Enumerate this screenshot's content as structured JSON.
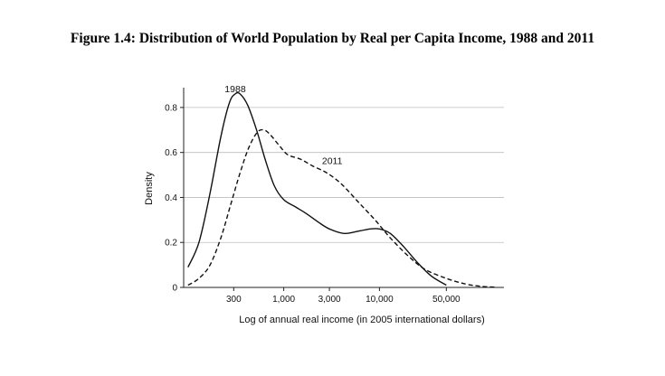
{
  "chart_data": {
    "type": "line",
    "title": "Figure 1.4: Distribution of World Population by Real per Capita Income, 1988 and 2011",
    "xlabel": "Log of annual real income (in 2005 international dollars)",
    "ylabel": "Density",
    "x_scale": "log",
    "xlim": [
      90,
      200000
    ],
    "ylim": [
      0,
      0.88
    ],
    "x_ticks": [
      {
        "value": 300,
        "label": "300"
      },
      {
        "value": 1000,
        "label": "1,000"
      },
      {
        "value": 3000,
        "label": "3,000"
      },
      {
        "value": 10000,
        "label": "10,000"
      },
      {
        "value": 50000,
        "label": "50,000"
      }
    ],
    "y_ticks": [
      {
        "value": 0,
        "label": "0"
      },
      {
        "value": 0.2,
        "label": "0.2"
      },
      {
        "value": 0.4,
        "label": "0.4"
      },
      {
        "value": 0.6,
        "label": "0.6"
      },
      {
        "value": 0.8,
        "label": "0.8"
      }
    ],
    "grid": "horizontal",
    "series": [
      {
        "name": "1988",
        "style": "solid",
        "points": [
          [
            100,
            0.09
          ],
          [
            130,
            0.2
          ],
          [
            170,
            0.42
          ],
          [
            220,
            0.67
          ],
          [
            270,
            0.82
          ],
          [
            310,
            0.86
          ],
          [
            350,
            0.86
          ],
          [
            420,
            0.81
          ],
          [
            520,
            0.7
          ],
          [
            650,
            0.56
          ],
          [
            800,
            0.45
          ],
          [
            1000,
            0.39
          ],
          [
            1300,
            0.36
          ],
          [
            1700,
            0.33
          ],
          [
            2300,
            0.29
          ],
          [
            3000,
            0.26
          ],
          [
            4300,
            0.24
          ],
          [
            6000,
            0.25
          ],
          [
            8000,
            0.26
          ],
          [
            10000,
            0.26
          ],
          [
            13000,
            0.24
          ],
          [
            18000,
            0.18
          ],
          [
            25000,
            0.11
          ],
          [
            35000,
            0.05
          ],
          [
            50000,
            0.01
          ]
        ]
      },
      {
        "name": "2011",
        "style": "dashed",
        "points": [
          [
            100,
            0.01
          ],
          [
            130,
            0.04
          ],
          [
            170,
            0.1
          ],
          [
            220,
            0.22
          ],
          [
            280,
            0.37
          ],
          [
            350,
            0.51
          ],
          [
            430,
            0.62
          ],
          [
            530,
            0.69
          ],
          [
            620,
            0.7
          ],
          [
            720,
            0.68
          ],
          [
            900,
            0.63
          ],
          [
            1100,
            0.59
          ],
          [
            1500,
            0.57
          ],
          [
            2000,
            0.54
          ],
          [
            2800,
            0.51
          ],
          [
            4000,
            0.46
          ],
          [
            6000,
            0.38
          ],
          [
            9000,
            0.3
          ],
          [
            13000,
            0.22
          ],
          [
            20000,
            0.14
          ],
          [
            30000,
            0.08
          ],
          [
            50000,
            0.04
          ],
          [
            80000,
            0.015
          ],
          [
            120000,
            0.004
          ],
          [
            170000,
            0.001
          ]
        ]
      }
    ]
  }
}
